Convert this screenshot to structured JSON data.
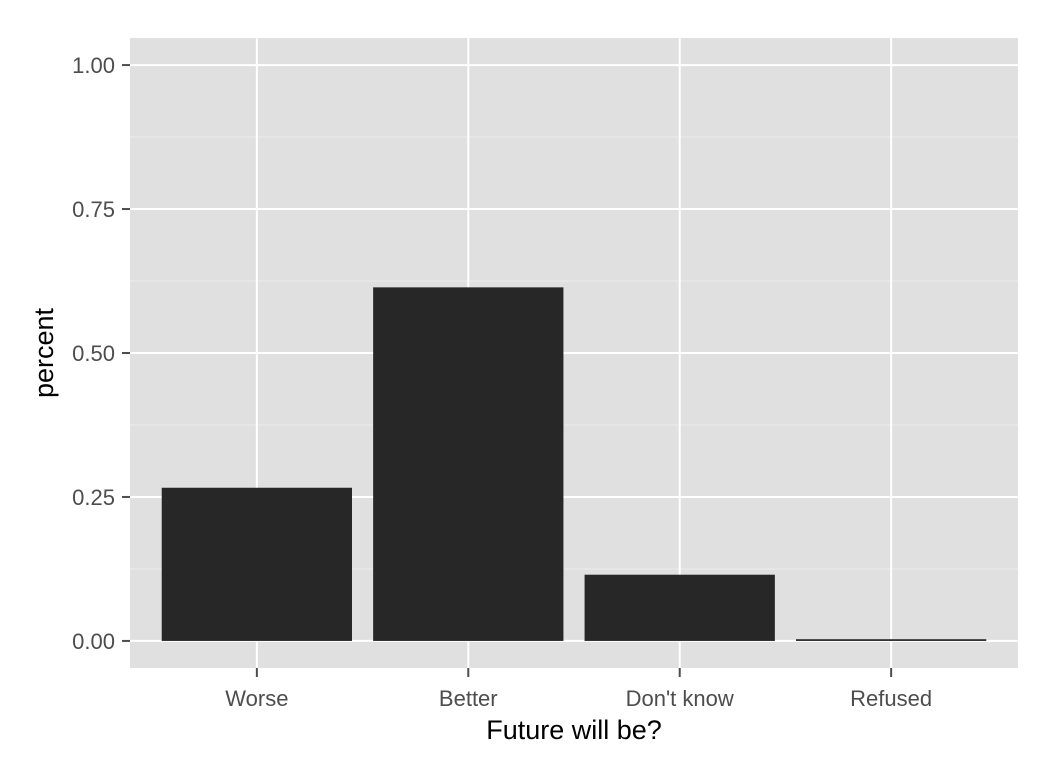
{
  "chart_data": {
    "type": "bar",
    "title": "",
    "xlabel": "Future will be?",
    "ylabel": "percent",
    "categories": [
      "Worse",
      "Better",
      "Don't know",
      "Refused"
    ],
    "values": [
      0.266,
      0.614,
      0.115,
      0.003
    ],
    "ylim": [
      -0.047,
      1.047
    ],
    "yticks": [
      0,
      0.25,
      0.5,
      0.75,
      1
    ],
    "ytick_labels": [
      "0.00",
      "0.25",
      "0.50",
      "0.75",
      "1.00"
    ],
    "grid": true,
    "legend": "none",
    "colors": {
      "panel_background": "#e0e0e0",
      "grid_major": "#ffffff",
      "grid_minor": "#ececec",
      "bar_fill": "#272727",
      "tick_mark": "#4d4d4d",
      "tick_label": "#4d4d4d",
      "axis_title": "#000000"
    }
  }
}
